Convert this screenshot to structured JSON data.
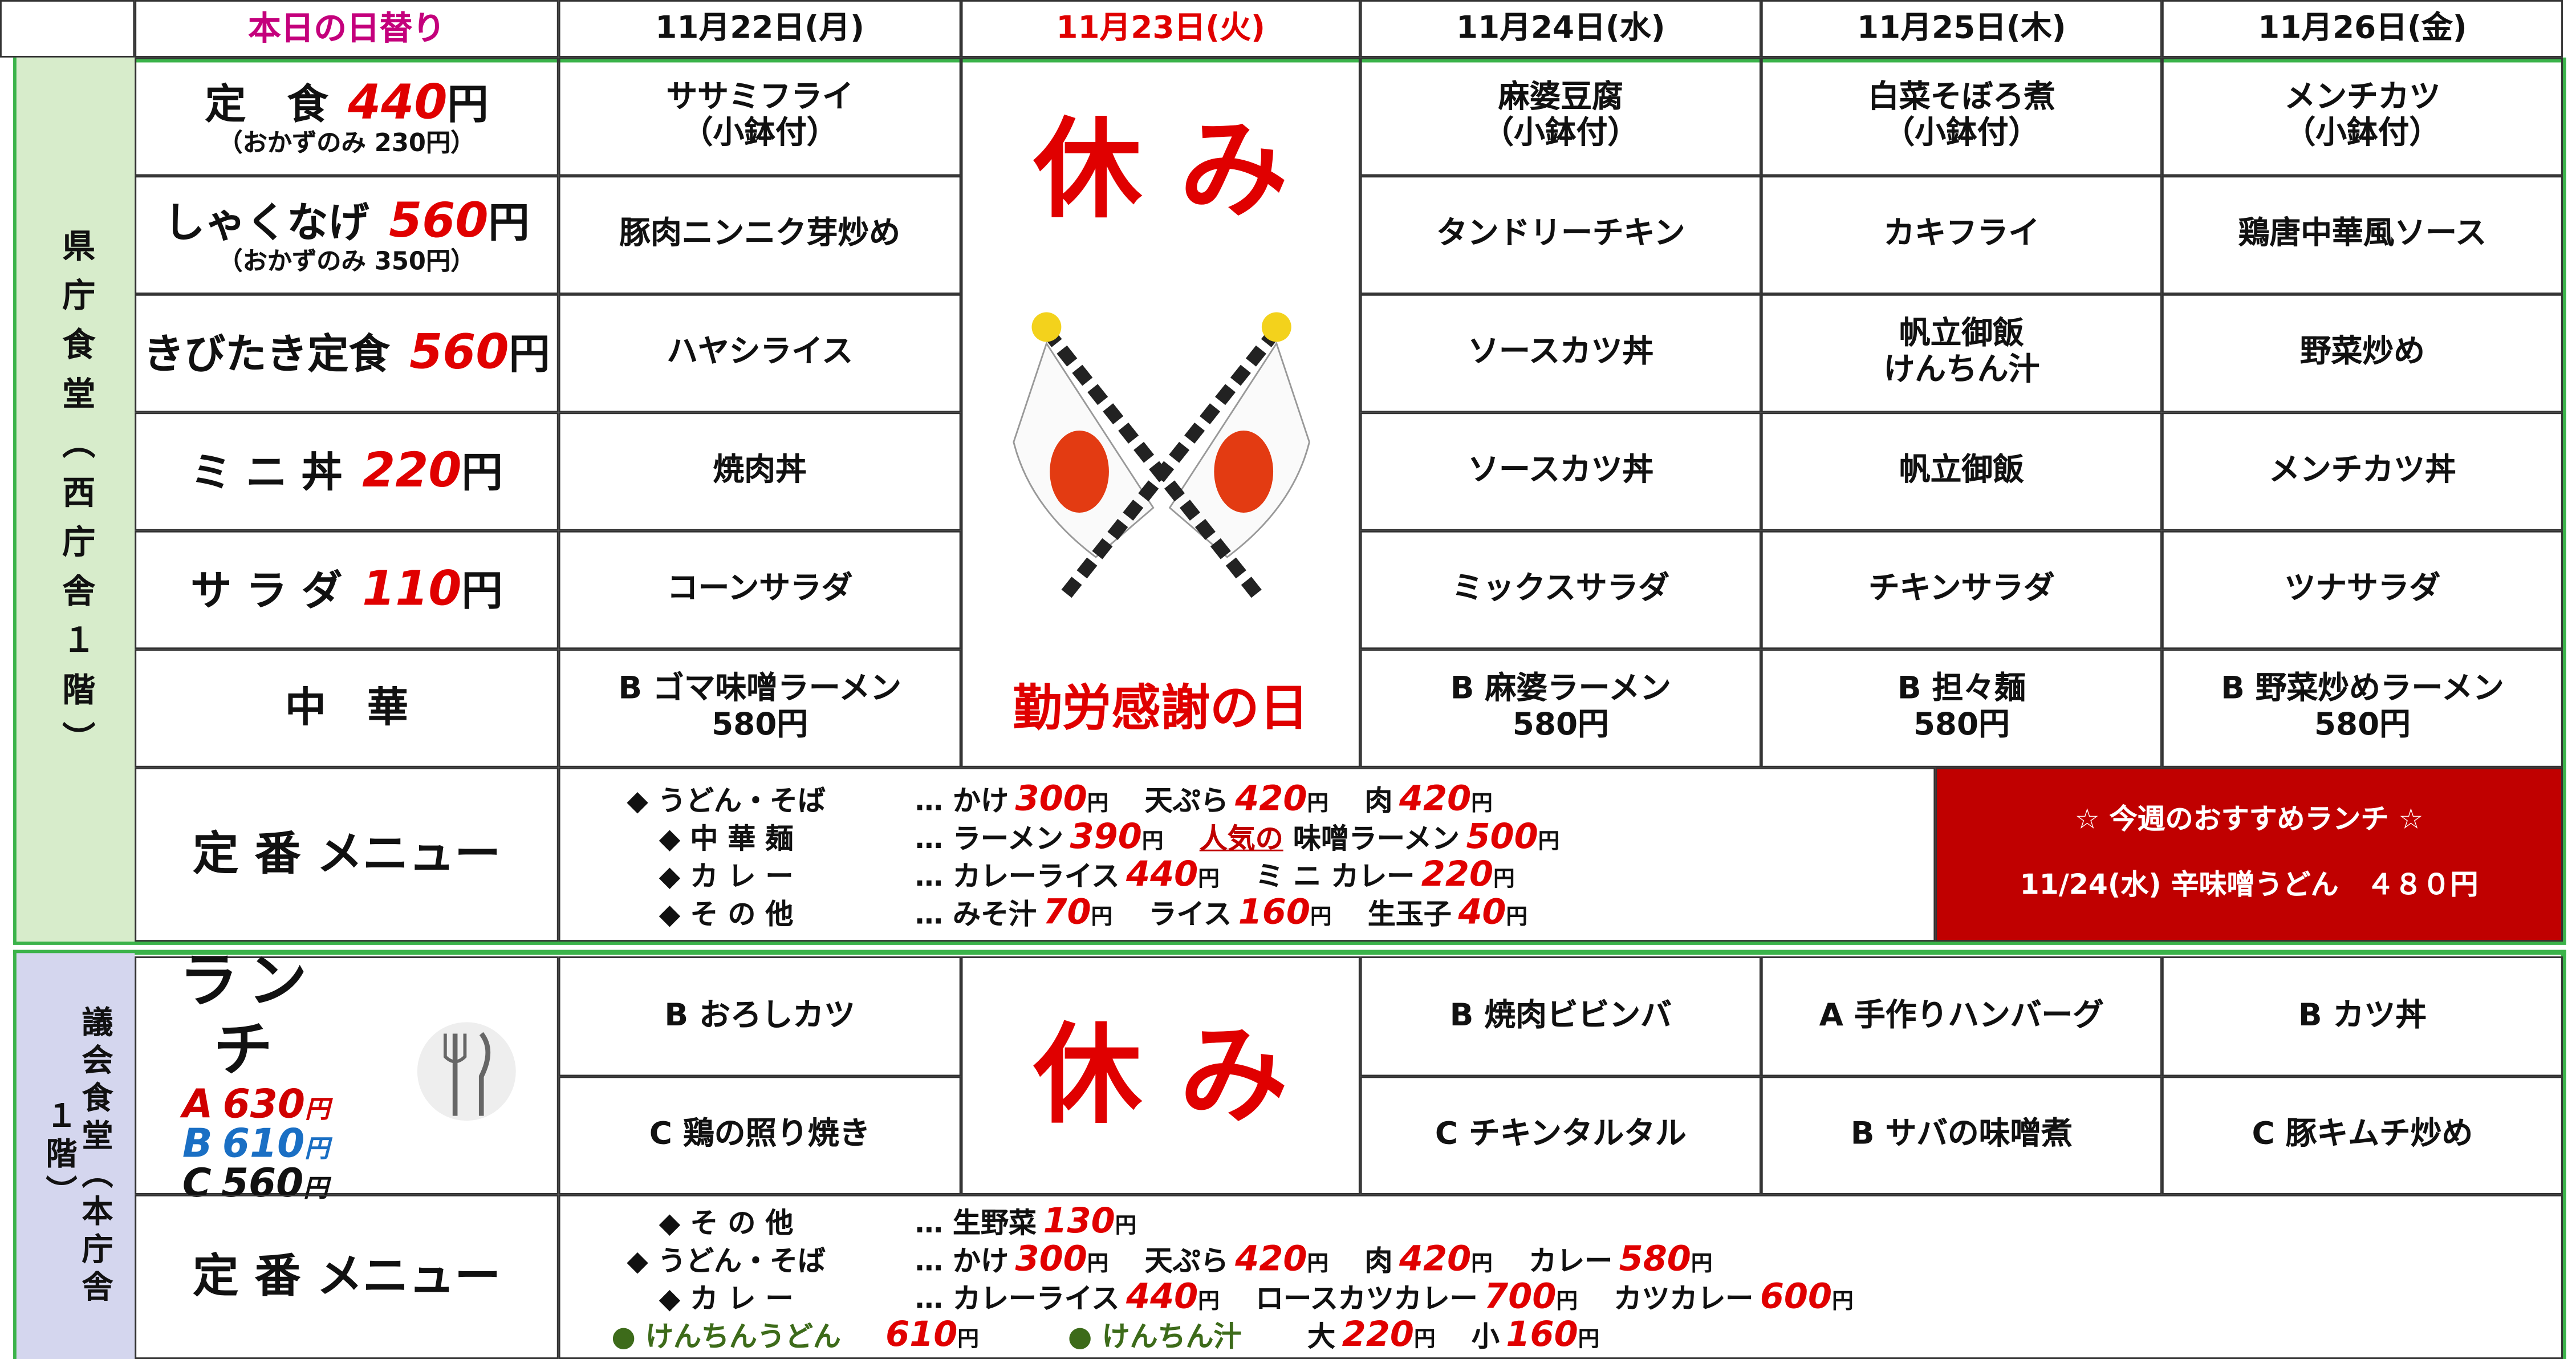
{
  "header": {
    "today_label": "本日の日替り",
    "days": [
      "11月22日(月)",
      "11月23日(火)",
      "11月24日(水)",
      "11月25日(木)",
      "11月26日(金)"
    ]
  },
  "section1": {
    "label": "県庁食堂（西庁舎１階）",
    "rows": [
      {
        "name": "定　食",
        "price": "440",
        "unit": "円",
        "note": "（おかずのみ 230円）",
        "cells": [
          "ササミフライ\n（小鉢付）",
          "麻婆豆腐\n（小鉢付）",
          "白菜そぼろ煮\n（小鉢付）",
          "メンチカツ\n（小鉢付）"
        ]
      },
      {
        "name": "しゃくなげ",
        "price": "560",
        "unit": "円",
        "note": "（おかずのみ 350円）",
        "cells": [
          "豚肉ニンニク芽炒め",
          "タンドリーチキン",
          "カキフライ",
          "鶏唐中華風ソース"
        ]
      },
      {
        "name": "きびたき定食",
        "price": "560",
        "unit": "円",
        "cells": [
          "ハヤシライス",
          "ソースカツ丼",
          "帆立御飯\nけんちん汁",
          "野菜炒め"
        ]
      },
      {
        "name": "ミ ニ 丼",
        "price": "220",
        "unit": "円",
        "cells": [
          "焼肉丼",
          "ソースカツ丼",
          "帆立御飯",
          "メンチカツ丼"
        ]
      },
      {
        "name": "サ ラ ダ",
        "price": "110",
        "unit": "円",
        "cells": [
          "コーンサラダ",
          "ミックスサラダ",
          "チキンサラダ",
          "ツナサラダ"
        ]
      },
      {
        "name": "中　華",
        "cells": [
          "B ゴマ味噌ラーメン\n580円",
          "B 麻婆ラーメン\n580円",
          "B 担々麺\n580円",
          "B 野菜炒めラーメン\n580円"
        ]
      }
    ],
    "holiday": "休 み",
    "holiday_name": "勤労感謝の日",
    "teiban": {
      "label": "定 番 メニュー",
      "lines": [
        [
          {
            "label": "◆ うどん・そば"
          },
          {
            "name": "… かけ",
            "price": "300",
            "unit": "円"
          },
          {
            "name": "天ぷら",
            "price": "420",
            "unit": "円"
          },
          {
            "name": "肉",
            "price": "420",
            "unit": "円"
          }
        ],
        [
          {
            "label": "◆ 中 華 麺"
          },
          {
            "name": "… ラーメン",
            "price": "390",
            "unit": "円"
          },
          {
            "badge": "人気の",
            "name": "味噌ラーメン",
            "price": "500",
            "unit": "円"
          }
        ],
        [
          {
            "label": "◆ カ レ ー"
          },
          {
            "name": "… カレーライス",
            "price": "440",
            "unit": "円"
          },
          {
            "name": "ミ ニ カレー",
            "price": "220",
            "unit": "円"
          }
        ],
        [
          {
            "label": "◆ そ の 他"
          },
          {
            "name": "… みそ汁",
            "price": "70",
            "unit": "円"
          },
          {
            "name": "ライス",
            "price": "160",
            "unit": "円"
          },
          {
            "name": "生玉子",
            "price": "40",
            "unit": "円"
          }
        ]
      ]
    },
    "recommend": {
      "title": "☆ 今週のおすすめランチ ☆",
      "text": "11/24(水) 辛味噌うどん　４８０円"
    }
  },
  "section2": {
    "label": "議会食堂（本庁舎１階）",
    "lunch": {
      "title": "ランチ",
      "prices": [
        {
          "grade": "A",
          "price": "630",
          "unit": "円"
        },
        {
          "grade": "B",
          "price": "610",
          "unit": "円"
        },
        {
          "grade": "C",
          "price": "560",
          "unit": "円"
        }
      ]
    },
    "rows": [
      [
        "B おろしカツ",
        "B 焼肉ビビンバ",
        "A 手作りハンバーグ",
        "B カツ丼"
      ],
      [
        "C 鶏の照り焼き",
        "C チキンタルタル",
        "B サバの味噌煮",
        "C 豚キムチ炒め"
      ]
    ],
    "holiday": "休 み",
    "teiban": {
      "label": "定 番 メニュー",
      "lines": [
        [
          {
            "label": "◆ そ の 他"
          },
          {
            "name": "… 生野菜",
            "price": "130",
            "unit": "円"
          }
        ],
        [
          {
            "label": "◆ うどん・そば"
          },
          {
            "name": "… かけ",
            "price": "300",
            "unit": "円"
          },
          {
            "name": "天ぷら",
            "price": "420",
            "unit": "円"
          },
          {
            "name": "肉",
            "price": "420",
            "unit": "円"
          },
          {
            "name": "カレー",
            "price": "580",
            "unit": "円"
          }
        ],
        [
          {
            "label": "◆ カ レ ー"
          },
          {
            "name": "… カレーライス",
            "price": "440",
            "unit": "円"
          },
          {
            "name": "ロースカツカレー",
            "price": "700",
            "unit": "円"
          },
          {
            "name": "カツカレー",
            "price": "600",
            "unit": "円"
          }
        ],
        [
          {
            "label": "● けんちんうどん",
            "price": "610",
            "unit": "円",
            "label_color": "#3d6b1a"
          },
          {
            "label": "● けんちん汁",
            "name": "大",
            "price": "220",
            "unit": "円",
            "label_color": "#3d6b1a"
          },
          {
            "name": "小",
            "price": "160",
            "unit": "円"
          }
        ]
      ]
    }
  }
}
